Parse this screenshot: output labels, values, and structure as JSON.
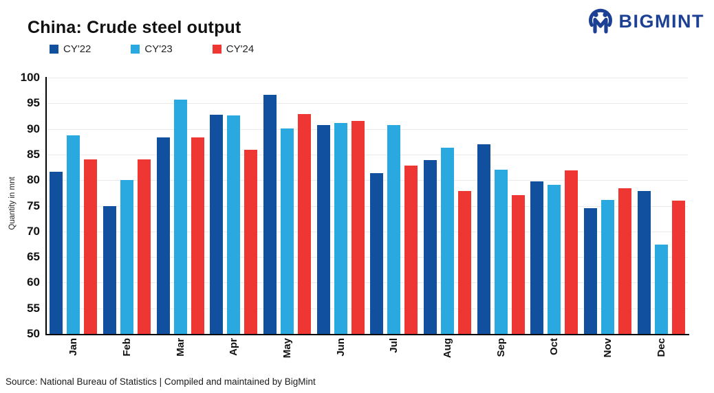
{
  "header": {
    "title": "China: Crude steel output",
    "logo_text": "BIGMINT"
  },
  "footer": {
    "source_text": "Source: National Bureau of Statistics | Compiled and maintained by BigMint"
  },
  "colors": {
    "cy22": "#11509e",
    "cy23": "#29a9e0",
    "cy24": "#ee3733",
    "logo_blue": "#1c4093",
    "gridline": "#eaeaea",
    "axis": "#000000"
  },
  "chart_data": {
    "type": "bar",
    "title": "China: Crude steel output",
    "xlabel": "",
    "ylabel": "Quantity in mnt",
    "ylim": [
      50,
      100
    ],
    "yticks": [
      100,
      95,
      90,
      85,
      80,
      75,
      70,
      65,
      60,
      55,
      50
    ],
    "grid": true,
    "legend_position": "top-left",
    "categories": [
      "Jan",
      "Feb",
      "Mar",
      "Apr",
      "May",
      "Jun",
      "Jul",
      "Aug",
      "Sep",
      "Oct",
      "Nov",
      "Dec"
    ],
    "series": [
      {
        "name": "CY'22",
        "color": "#11509e",
        "values": [
          81.7,
          75.0,
          88.3,
          92.8,
          96.6,
          90.7,
          81.4,
          83.9,
          87.0,
          79.8,
          74.5,
          77.9
        ]
      },
      {
        "name": "CY'23",
        "color": "#29a9e0",
        "values": [
          88.7,
          80.1,
          95.7,
          92.6,
          90.1,
          91.1,
          90.8,
          86.4,
          82.1,
          79.1,
          76.1,
          67.4
        ]
      },
      {
        "name": "CY'24",
        "color": "#ee3733",
        "values": [
          84.0,
          84.0,
          88.3,
          85.9,
          92.9,
          91.6,
          82.9,
          77.9,
          77.1,
          81.9,
          78.4,
          76.0
        ]
      }
    ]
  }
}
